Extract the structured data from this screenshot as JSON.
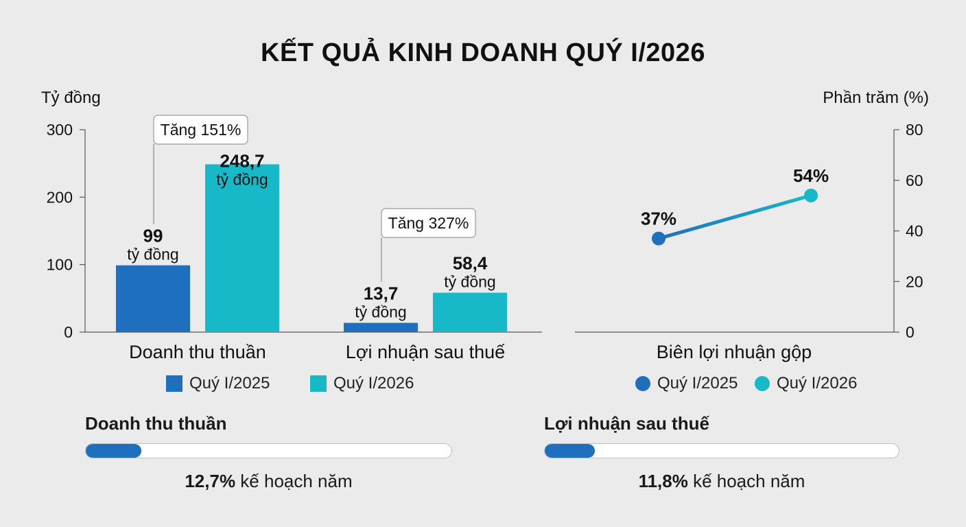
{
  "title": "KẾT QUẢ KINH DOANH QUÝ I/2026",
  "colors": {
    "q2025": "#1f6fbf",
    "q2026": "#17b8c8",
    "axis": "#555555"
  },
  "chart_data": [
    {
      "type": "bar",
      "ylabel": "Tỷ đồng",
      "ylim": [
        0,
        300
      ],
      "yticks": [
        "0",
        "100",
        "200",
        "300"
      ],
      "ytick_values": [
        0,
        100,
        200,
        300
      ],
      "categories": [
        "Doanh thu thuần",
        "Lợi nhuận sau thuế"
      ],
      "series": [
        {
          "name": "Quý I/2025",
          "values": [
            99,
            13.7
          ],
          "labels": [
            "99",
            "13,7"
          ]
        },
        {
          "name": "Quý I/2026",
          "values": [
            248.7,
            58.4
          ],
          "labels": [
            "248,7",
            "58,4"
          ]
        }
      ],
      "unit_label": "tỷ đồng",
      "annotations": [
        "Tăng 151%",
        "Tăng 327%"
      ],
      "legend": "bottom"
    },
    {
      "type": "line",
      "ylabel": "Phần trăm (%)",
      "ylim": [
        0,
        80
      ],
      "yticks": [
        "0",
        "20",
        "40",
        "60",
        "80"
      ],
      "ytick_values": [
        0,
        20,
        40,
        60,
        80
      ],
      "category": "Biên lợi nhuận gộp",
      "series": [
        {
          "name": "Quý I/2025",
          "value": 37,
          "label": "37%"
        },
        {
          "name": "Quý I/2026",
          "value": 54,
          "label": "54%"
        }
      ],
      "legend": "bottom"
    }
  ],
  "progress": [
    {
      "title": "Doanh thu thuần",
      "percent": 12.7,
      "value_label": "12,7%",
      "suffix": " kế hoạch năm"
    },
    {
      "title": "Lợi nhuận sau thuế",
      "percent": 11.8,
      "value_label": "11,8%",
      "suffix": " kế hoạch năm"
    }
  ]
}
